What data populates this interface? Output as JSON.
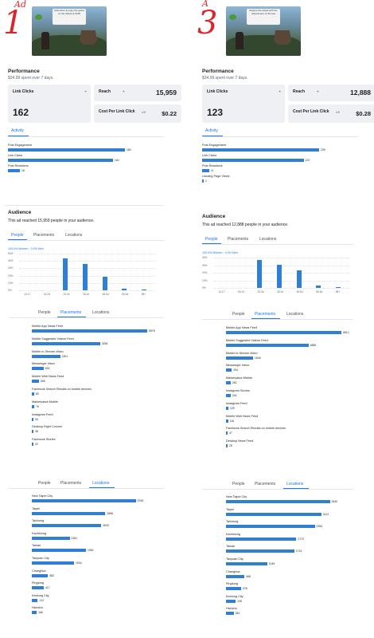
{
  "annotation": {
    "left": "Ad",
    "left_num": "1",
    "right": "A",
    "right_num": "3"
  },
  "ads": [
    {
      "key": "left",
      "thumb_text": "Adventure & enjoy the game on the island of thrills",
      "performance_title": "Performance",
      "spent": "$34.99 spent over 7 days.",
      "link_clicks_label": "Link Clicks",
      "link_clicks": "162",
      "reach_label": "Reach",
      "reach": "15,959",
      "cpc_label": "Cost Per Link Click",
      "cpc_currency": "US",
      "cpc": "$0.22",
      "activity_tab": "Activity",
      "activity": [
        {
          "label": "Post Engagement",
          "value": "180",
          "pct": 0.98
        },
        {
          "label": "Link Clicks",
          "value": "162",
          "pct": 0.88
        },
        {
          "label": "Post Reactions",
          "value": "18",
          "pct": 0.1
        }
      ],
      "audience_title": "Audience",
      "audience_text": "This ad reached 15,959 people in your audience.",
      "tabs": [
        "People",
        "Placements",
        "Locations"
      ],
      "age_chart": {
        "legend": "100.0% Women · 0.0% Men",
        "yticks": [
          "50%",
          "40%",
          "30%",
          "20%",
          "10%",
          "0%"
        ],
        "ages": [
          "13-17",
          "18-24",
          "25-34",
          "35-44",
          "45-54",
          "55-64",
          "65+"
        ],
        "women": [
          0,
          0,
          43,
          36,
          19,
          2,
          1
        ],
        "men": [
          0,
          0,
          0,
          0,
          0,
          0,
          0
        ],
        "ylim": [
          0,
          50
        ]
      },
      "placements": [
        {
          "label": "Mobile App News Feed",
          "value": "5578",
          "pct": 0.98
        },
        {
          "label": "Mobile Suggested Videos Feed",
          "value": "3254",
          "pct": 0.58
        },
        {
          "label": "Mobile In-Stream Video",
          "value": "1301",
          "pct": 0.24
        },
        {
          "label": "Messenger Inbox",
          "value": "532",
          "pct": 0.1
        },
        {
          "label": "Mobile Web News Feed",
          "value": "308",
          "pct": 0.06
        },
        {
          "label": "Facebook Search Results on mobile devices",
          "value": "80",
          "pct": 0.02
        },
        {
          "label": "Marketplace Mobile",
          "value": "76",
          "pct": 0.02
        },
        {
          "label": "Instagram Feed",
          "value": "54",
          "pct": 0.015
        },
        {
          "label": "Desktop Right Column",
          "value": "38",
          "pct": 0.012
        },
        {
          "label": "Facebook Stories",
          "value": "22",
          "pct": 0.01
        }
      ],
      "locations": [
        {
          "label": "New Taipei City",
          "value": "3769",
          "pct": 0.96
        },
        {
          "label": "Taipei",
          "value": "2655",
          "pct": 0.68
        },
        {
          "label": "Taichung",
          "value": "2529",
          "pct": 0.64
        },
        {
          "label": "Kaohsiung",
          "value": "1361",
          "pct": 0.35
        },
        {
          "label": "Tainan",
          "value": "1962",
          "pct": 0.5
        },
        {
          "label": "Taoyuan City",
          "value": "1534",
          "pct": 0.39
        },
        {
          "label": "Changhua",
          "value": "582",
          "pct": 0.15
        },
        {
          "label": "Pingtung",
          "value": "417",
          "pct": 0.11
        },
        {
          "label": "Keelung City",
          "value": "212",
          "pct": 0.055
        },
        {
          "label": "Hsinchu",
          "value": "166",
          "pct": 0.045
        }
      ]
    },
    {
      "key": "right",
      "thumb_text": "Explore the island with the adventurers of the sea",
      "performance_title": "Performance",
      "spent": "$34.99 spent over 7 days.",
      "link_clicks_label": "Link Clicks",
      "link_clicks": "123",
      "reach_label": "Reach",
      "reach": "12,888",
      "cpc_label": "Cost Per Link Click",
      "cpc_currency": "US",
      "cpc": "$0.28",
      "activity_tab": "Activity",
      "activity": [
        {
          "label": "Post Engagement",
          "value": "239",
          "pct": 0.98
        },
        {
          "label": "Link Clicks",
          "value": "123",
          "pct": 0.85
        },
        {
          "label": "Post Reactions",
          "value": "11",
          "pct": 0.06
        },
        {
          "label": "Landing Page Views",
          "value": "2",
          "pct": 0.01
        }
      ],
      "audience_title": "Audience",
      "audience_text": "This ad reached 12,888 people in your audience.",
      "tabs": [
        "People",
        "Placements",
        "Locations"
      ],
      "age_chart": {
        "legend": "100.0% Women · 0.0% Men",
        "yticks": [
          "40%",
          "30%",
          "20%",
          "10%",
          "0%"
        ],
        "ages": [
          "13-17",
          "18-24",
          "25-34",
          "35-44",
          "45-54",
          "55-64",
          "65+"
        ],
        "women": [
          0,
          0,
          37,
          31,
          23,
          3,
          1
        ],
        "men": [
          0,
          0,
          0,
          0,
          0,
          0,
          0
        ],
        "ylim": [
          0,
          40
        ]
      },
      "placements": [
        {
          "label": "Mobile App News Feed",
          "value": "6812",
          "pct": 0.98
        },
        {
          "label": "Mobile Suggested Videos Feed",
          "value": "4856",
          "pct": 0.7
        },
        {
          "label": "Mobile In-Stream Video",
          "value": "1546",
          "pct": 0.23
        },
        {
          "label": "Messenger Inbox",
          "value": "294",
          "pct": 0.05
        },
        {
          "label": "Marketplace Mobile",
          "value": "252",
          "pct": 0.04
        },
        {
          "label": "Instagram Stories",
          "value": "244",
          "pct": 0.04
        },
        {
          "label": "Instagram Feed",
          "value": "129",
          "pct": 0.02
        },
        {
          "label": "Mobile Web News Feed",
          "value": "116",
          "pct": 0.018
        },
        {
          "label": "Facebook Search Results on mobile devices",
          "value": "47",
          "pct": 0.01
        },
        {
          "label": "Desktop News Feed",
          "value": "28",
          "pct": 0.008
        }
      ],
      "locations": [
        {
          "label": "New Taipei City",
          "value": "2640",
          "pct": 0.96
        },
        {
          "label": "Taipei",
          "value": "2412",
          "pct": 0.88
        },
        {
          "label": "Taichung",
          "value": "2254",
          "pct": 0.82
        },
        {
          "label": "Kaohsiung",
          "value": "1772",
          "pct": 0.65
        },
        {
          "label": "Tainan",
          "value": "1724",
          "pct": 0.63
        },
        {
          "label": "Taoyuan City",
          "value": "1049",
          "pct": 0.38
        },
        {
          "label": "Changhua",
          "value": "468",
          "pct": 0.17
        },
        {
          "label": "Pingtung",
          "value": "378",
          "pct": 0.14
        },
        {
          "label": "Keelung City",
          "value": "235",
          "pct": 0.09
        },
        {
          "label": "Hsinchu",
          "value": "184",
          "pct": 0.07
        }
      ]
    }
  ]
}
